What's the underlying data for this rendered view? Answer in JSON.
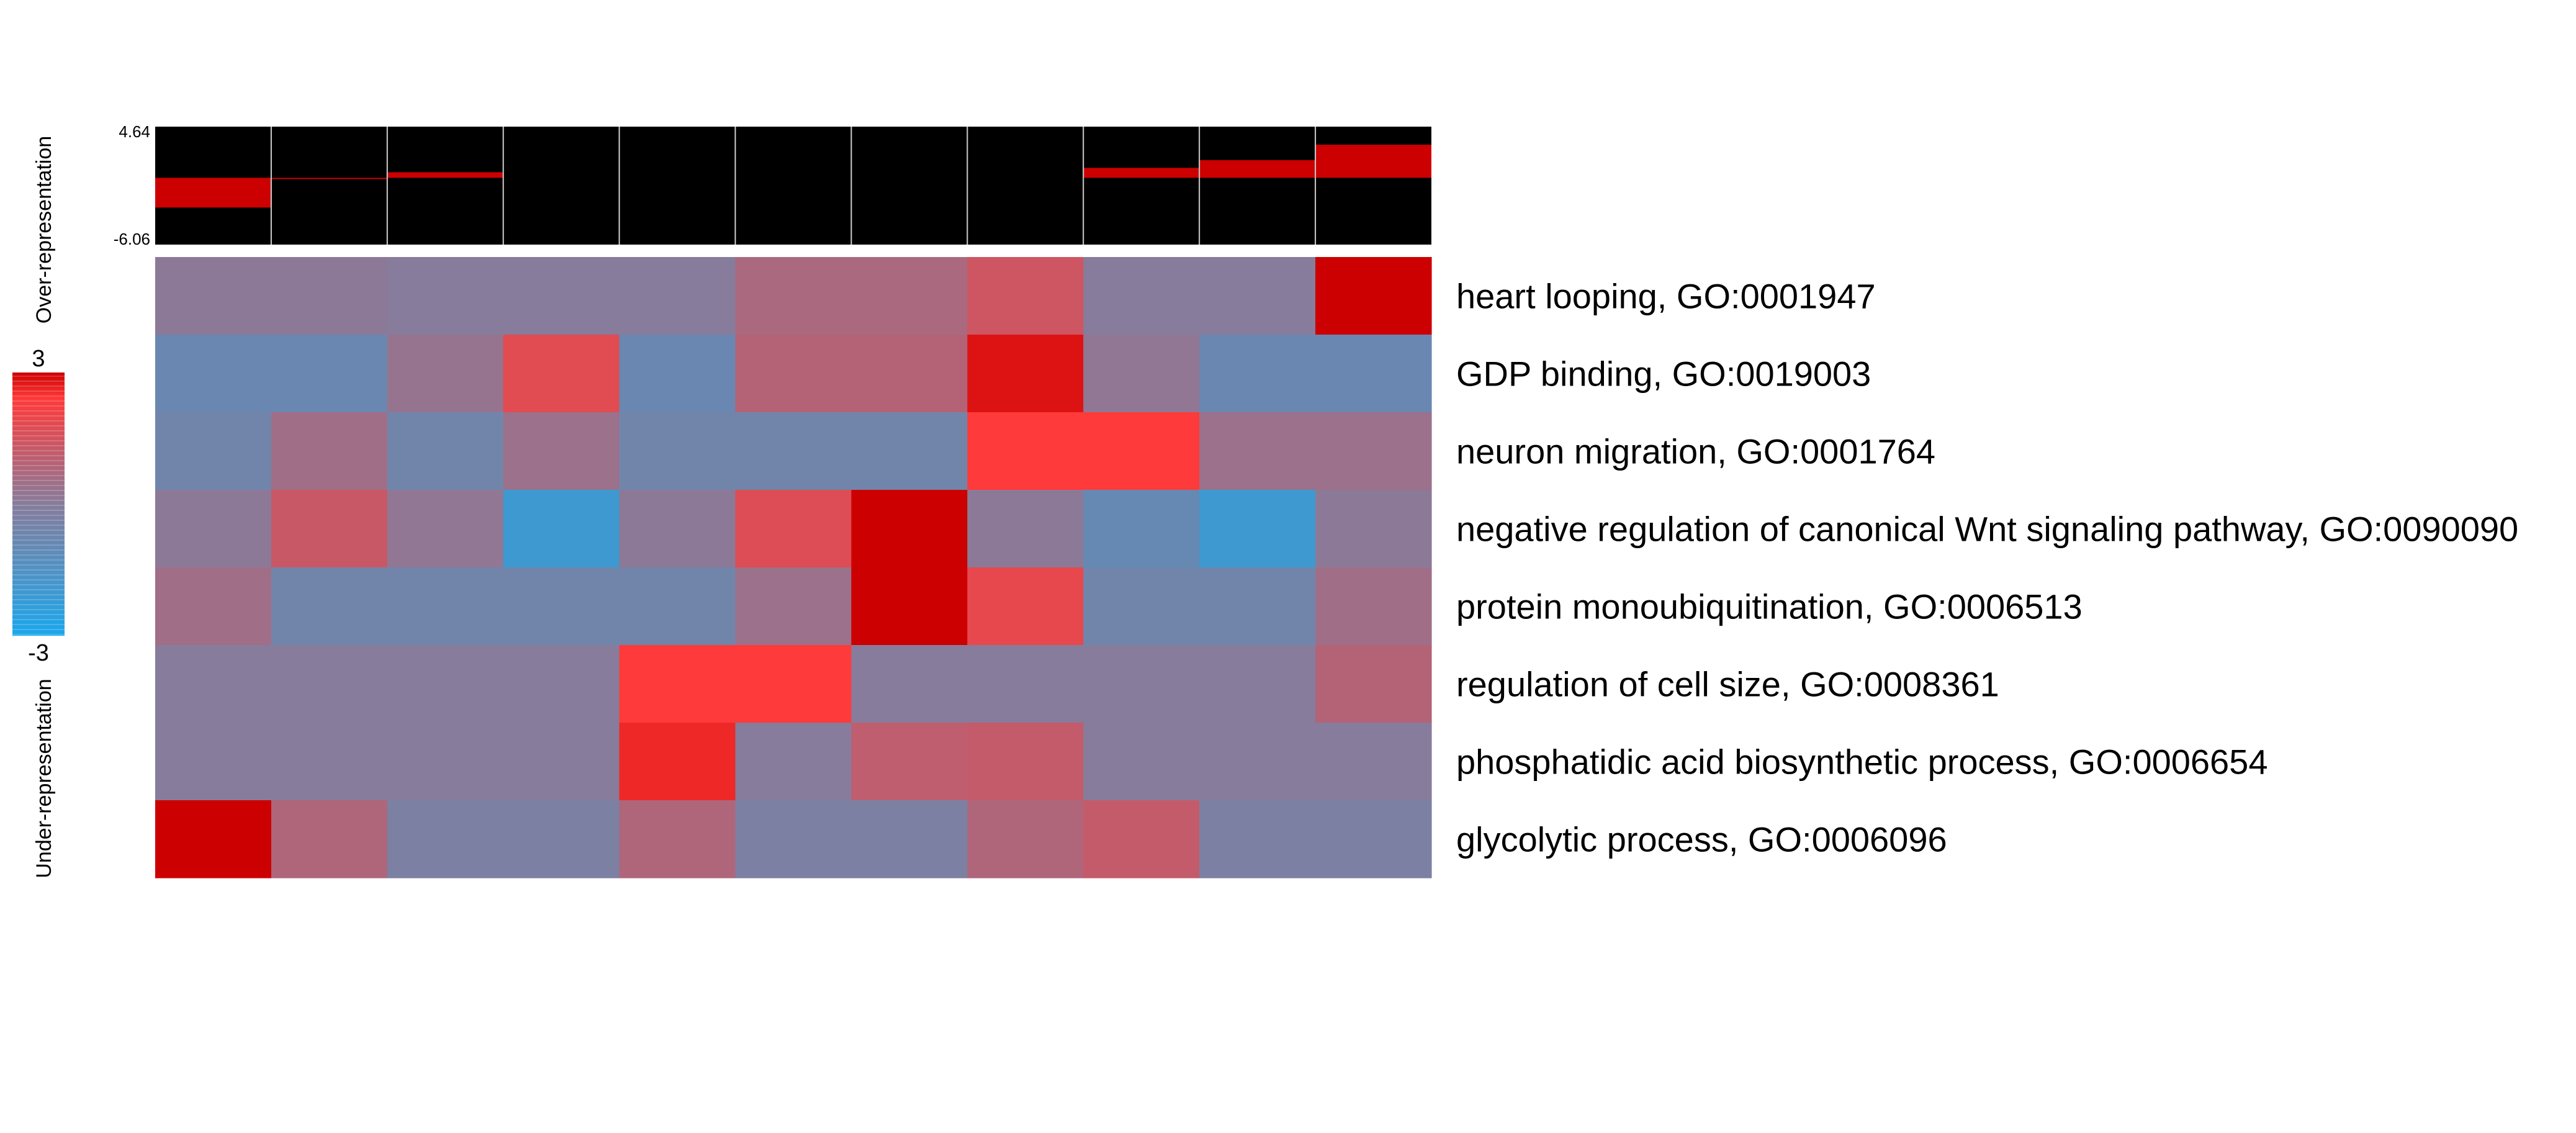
{
  "chart_data": {
    "type": "heatmap",
    "columns": 11,
    "rows": [
      "heart looping, GO:0001947",
      "GDP binding, GO:0019003",
      "neuron migration, GO:0001764",
      "negative regulation of canonical Wnt signaling pathway, GO:0090090",
      "protein monoubiquitination, GO:0006513",
      "regulation of cell size, GO:0008361",
      "phosphatidic acid biosynthetic process, GO:0006654",
      "glycolytic process, GO:0006096"
    ],
    "values": [
      [
        0.1,
        0.1,
        0.0,
        0.0,
        0.0,
        0.7,
        0.7,
        1.4,
        0.0,
        0.0,
        3.0
      ],
      [
        -0.8,
        -0.8,
        0.3,
        1.8,
        -0.8,
        0.9,
        0.9,
        2.8,
        0.2,
        -0.8,
        -0.8
      ],
      [
        -0.6,
        0.5,
        -0.6,
        0.4,
        -0.6,
        -0.6,
        -0.6,
        2.4,
        2.4,
        0.4,
        0.4
      ],
      [
        0.1,
        1.3,
        0.2,
        -2.0,
        0.1,
        1.7,
        3.0,
        0.1,
        -0.9,
        -2.0,
        0.1
      ],
      [
        0.5,
        -0.6,
        -0.6,
        -0.6,
        -0.6,
        0.4,
        3.0,
        1.9,
        -0.6,
        -0.6,
        0.5
      ],
      [
        0.0,
        0.0,
        0.0,
        0.0,
        2.4,
        2.4,
        0.0,
        0.0,
        0.0,
        0.0,
        0.9
      ],
      [
        0.0,
        0.0,
        0.0,
        0.0,
        2.6,
        0.0,
        1.1,
        1.2,
        0.0,
        0.0,
        0.0
      ],
      [
        3.0,
        0.8,
        -0.3,
        -0.3,
        0.8,
        -0.3,
        -0.3,
        0.8,
        1.2,
        -0.3,
        -0.3
      ]
    ],
    "color_scale": {
      "min": -3,
      "max": 3,
      "min_label": "-3",
      "max_label": "3",
      "low_color": "#1aa7ec",
      "mid_color": "#877c9b",
      "high_color": "#cc0000"
    },
    "side_labels": {
      "top": "Over-representation",
      "bottom": "Under-representation"
    },
    "bar_strip": {
      "ymax_label": "4.64",
      "ymin_label": "-6.06",
      "ymax": 4.64,
      "ymin": -6.06,
      "values": [
        -2.7,
        -0.1,
        0.5,
        0.0,
        0.0,
        0.0,
        0.0,
        0.0,
        0.9,
        1.6,
        3.0
      ],
      "bar_color": "#cc0000",
      "background_color": "#000000"
    }
  }
}
